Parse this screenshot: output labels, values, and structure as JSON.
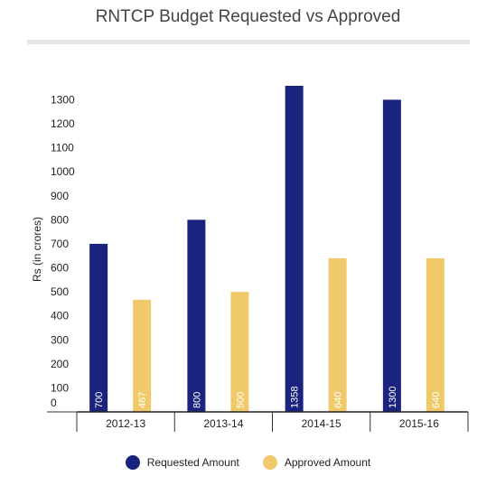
{
  "chart_data": {
    "type": "bar",
    "title": "RNTCP Budget Requested vs Approved",
    "xlabel": "",
    "ylabel": "Rs (in crores)",
    "categories": [
      "2012-13",
      "2013-14",
      "2014-15",
      "2015-16"
    ],
    "series": [
      {
        "name": "Requested Amount",
        "color": "#1a237e",
        "values": [
          700,
          800,
          1358,
          1300
        ]
      },
      {
        "name": "Approved Amount",
        "color": "#f0c96b",
        "values": [
          467,
          500,
          640,
          640
        ]
      }
    ],
    "yticks": [
      0,
      100,
      200,
      300,
      400,
      500,
      600,
      700,
      800,
      900,
      1000,
      1100,
      1200,
      1300
    ],
    "ylim": [
      0,
      1358
    ],
    "legend": "bottom",
    "grid": false
  }
}
